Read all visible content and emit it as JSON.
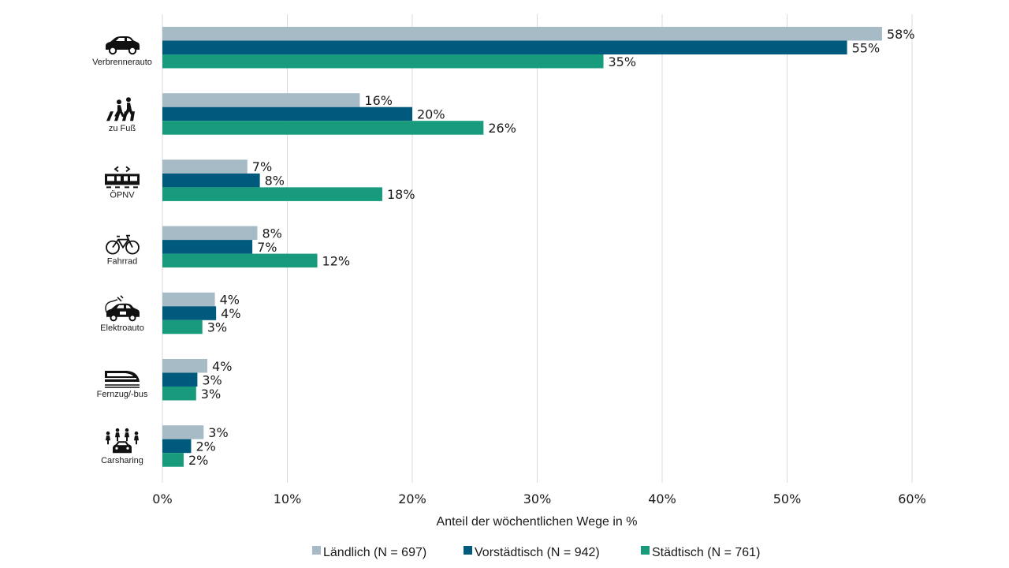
{
  "chart_data": {
    "type": "bar",
    "orientation": "horizontal",
    "categories": [
      "Verbrennerauto",
      "zu Fuß",
      "ÖPNV",
      "Fahrrad",
      "Elektroauto",
      "Fernzug/-bus",
      "Carsharing"
    ],
    "category_icons": [
      "car-icon",
      "pedestrian-icon",
      "tram-icon",
      "bicycle-icon",
      "electric-car-icon",
      "train-icon",
      "carsharing-icon"
    ],
    "series": [
      {
        "name": "Ländlich (N = 697)",
        "color": "#a7bbc6",
        "values": [
          57.6,
          15.8,
          6.8,
          7.6,
          4.2,
          3.6,
          3.3
        ],
        "labels": [
          "58%",
          "16%",
          "7%",
          "8%",
          "4%",
          "4%",
          "3%"
        ]
      },
      {
        "name": "Vorstädtisch (N = 942)",
        "color": "#005a7d",
        "values": [
          54.8,
          20.0,
          7.8,
          7.2,
          4.3,
          2.8,
          2.3
        ],
        "labels": [
          "55%",
          "20%",
          "8%",
          "7%",
          "4%",
          "3%",
          "2%"
        ]
      },
      {
        "name": "Städtisch (N = 761)",
        "color": "#189a7c",
        "values": [
          35.3,
          25.7,
          17.6,
          12.4,
          3.2,
          2.7,
          1.7
        ],
        "labels": [
          "35%",
          "26%",
          "18%",
          "12%",
          "3%",
          "3%",
          "2%"
        ]
      }
    ],
    "xlim": [
      0,
      60
    ],
    "xticks": [
      0,
      10,
      20,
      30,
      40,
      50,
      60
    ],
    "xtick_labels": [
      "0%",
      "10%",
      "20%",
      "30%",
      "40%",
      "50%",
      "60%"
    ],
    "xlabel": "Anteil der wöchentlichen Wege in %",
    "legend_position": "bottom",
    "grid": "vertical"
  }
}
